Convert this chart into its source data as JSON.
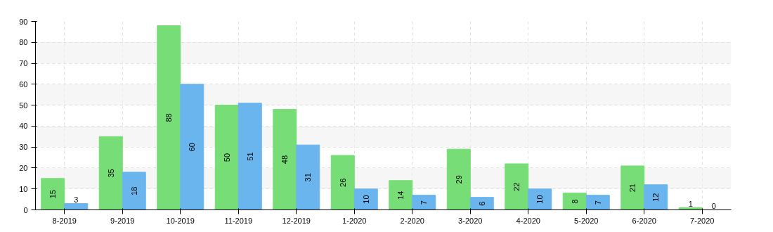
{
  "chart_data": {
    "type": "bar",
    "categories": [
      "8-2019",
      "9-2019",
      "10-2019",
      "11-2019",
      "12-2019",
      "1-2020",
      "2-2020",
      "3-2020",
      "4-2020",
      "5-2020",
      "6-2020",
      "7-2020"
    ],
    "series": [
      {
        "color": "#77dd77",
        "values": [
          15,
          35,
          88,
          50,
          48,
          26,
          14,
          29,
          22,
          8,
          21,
          1
        ]
      },
      {
        "color": "#6bb5ee",
        "values": [
          3,
          18,
          60,
          51,
          31,
          10,
          7,
          6,
          10,
          7,
          12,
          0
        ]
      }
    ],
    "ylim": [
      0,
      90
    ],
    "yticks": [
      0,
      10,
      20,
      30,
      40,
      50,
      60,
      70,
      80,
      90
    ],
    "grid": true,
    "data_labels": true
  }
}
